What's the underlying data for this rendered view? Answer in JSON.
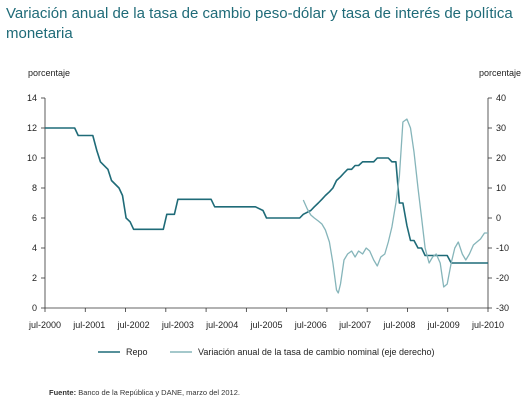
{
  "chart_data": {
    "type": "line",
    "title": "Variación anual de la tasa de cambio peso-dólar y tasa de interés de política monetaria",
    "ylabel": "porcentaje",
    "y2label": "porcentaje",
    "ylim": [
      0,
      14
    ],
    "yticks": [
      0,
      2,
      4,
      6,
      8,
      10,
      12,
      14
    ],
    "y2lim": [
      -30,
      40
    ],
    "y2ticks": [
      -30,
      -20,
      -10,
      0,
      10,
      20,
      30,
      40
    ],
    "xlim": [
      2000.5,
      2010.5
    ],
    "xtick_labels": [
      "jul-2000",
      "jul-2001",
      "jul-2002",
      "jul-2003",
      "jul-2004",
      "jul-2005",
      "jul-2006",
      "jul-2007",
      "jul-2008",
      "jul-2009",
      "jul-2010"
    ],
    "grid": false,
    "legend_position": "bottom",
    "colors": {
      "repo": "#1f6b78",
      "fx": "#86b5ba"
    },
    "series": [
      {
        "name": "Repo",
        "axis": "left",
        "color": "#1f6b78",
        "x": [
          2000.5,
          2001.17,
          2001.25,
          2001.58,
          2001.67,
          2001.75,
          2001.92,
          2002.0,
          2002.17,
          2002.25,
          2002.33,
          2002.42,
          2002.5,
          2002.67,
          2003.17,
          2003.25,
          2003.42,
          2003.5,
          2004.25,
          2004.33,
          2005.25,
          2005.42,
          2005.5,
          2006.25,
          2006.33,
          2006.5,
          2006.58,
          2006.67,
          2006.75,
          2006.83,
          2006.92,
          2007.0,
          2007.08,
          2007.17,
          2007.25,
          2007.33,
          2007.42,
          2007.5,
          2007.58,
          2007.67,
          2007.92,
          2008.0,
          2008.08,
          2008.17,
          2008.25,
          2008.33,
          2008.42,
          2008.5,
          2008.58,
          2008.67,
          2008.75,
          2008.83,
          2008.92,
          2009.0,
          2009.08,
          2009.17,
          2009.25,
          2009.33,
          2009.42,
          2009.5,
          2009.58,
          2009.67,
          2009.75,
          2009.83,
          2009.92,
          2010.0,
          2010.08,
          2010.5
        ],
        "y": [
          12.0,
          12.0,
          11.5,
          11.5,
          10.5,
          9.75,
          9.25,
          8.5,
          8.0,
          7.5,
          6.0,
          5.75,
          5.25,
          5.25,
          5.25,
          6.25,
          6.25,
          7.25,
          7.25,
          6.75,
          6.75,
          6.5,
          6.0,
          6.0,
          6.25,
          6.5,
          6.75,
          7.0,
          7.25,
          7.5,
          7.75,
          8.0,
          8.5,
          8.75,
          9.0,
          9.25,
          9.25,
          9.5,
          9.5,
          9.75,
          9.75,
          10.0,
          10.0,
          10.0,
          10.0,
          9.75,
          9.75,
          7.0,
          7.0,
          5.5,
          4.5,
          4.5,
          4.0,
          4.0,
          3.5,
          3.5,
          3.5,
          3.5,
          3.5,
          3.5,
          3.5,
          3.0,
          3.0,
          3.0,
          3.0,
          3.0,
          3.0,
          3.0
        ]
      },
      {
        "name": "Variación anual de la tasa de cambio nominal (eje derecho)",
        "axis": "right",
        "color": "#86b5ba",
        "x": [
          2006.33,
          2006.42,
          2006.5,
          2006.58,
          2006.67,
          2006.75,
          2006.83,
          2006.92,
          2007.0,
          2007.08,
          2007.12,
          2007.17,
          2007.25,
          2007.33,
          2007.42,
          2007.5,
          2007.58,
          2007.67,
          2007.75,
          2007.83,
          2007.92,
          2008.0,
          2008.08,
          2008.17,
          2008.25,
          2008.33,
          2008.42,
          2008.5,
          2008.58,
          2008.67,
          2008.75,
          2008.83,
          2008.92,
          2009.0,
          2009.08,
          2009.17,
          2009.25,
          2009.33,
          2009.42,
          2009.5,
          2009.58,
          2009.67,
          2009.75,
          2009.83,
          2009.92,
          2010.0,
          2010.08,
          2010.17,
          2010.25,
          2010.33,
          2010.42,
          2010.5
        ],
        "y": [
          6,
          3,
          1,
          0,
          -1,
          -2,
          -4,
          -8,
          -15,
          -24,
          -25,
          -22,
          -14,
          -12,
          -11,
          -13,
          -11,
          -12,
          -10,
          -11,
          -14,
          -16,
          -13,
          -12,
          -8,
          -3,
          5,
          14,
          32,
          33,
          30,
          22,
          10,
          0,
          -10,
          -15,
          -13,
          -12,
          -15,
          -23,
          -22,
          -15,
          -10,
          -8,
          -12,
          -14,
          -12,
          -9,
          -8,
          -7,
          -5,
          -5
        ]
      }
    ],
    "source": {
      "label": "Fuente:",
      "text": "Banco de la República y DANE, marzo del 2012."
    }
  }
}
